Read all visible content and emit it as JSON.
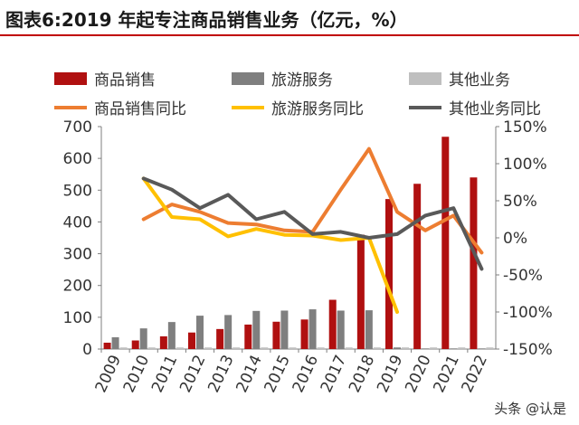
{
  "title": "图表6:2019 年起专注商品销售业务（亿元，%）",
  "watermark": "头条 @认是",
  "chart_data": {
    "type": "bar",
    "categories": [
      "2009",
      "2010",
      "2011",
      "2012",
      "2013",
      "2014",
      "2015",
      "2016",
      "2017",
      "2018",
      "2019",
      "2020",
      "2021",
      "2022"
    ],
    "series": [
      {
        "name": "商品销售",
        "kind": "bar",
        "axis": "left",
        "color": "#b01010",
        "values": [
          20,
          27,
          40,
          52,
          63,
          77,
          86,
          93,
          155,
          360,
          472,
          520,
          668,
          540
        ]
      },
      {
        "name": "旅游服务",
        "kind": "bar",
        "axis": "left",
        "color": "#7f7f7f",
        "values": [
          37,
          65,
          85,
          105,
          107,
          120,
          121,
          125,
          121,
          122,
          5,
          2,
          2,
          2
        ]
      },
      {
        "name": "其他业务",
        "kind": "bar",
        "axis": "left",
        "color": "#bfbfbf",
        "values": [
          5,
          5,
          5,
          5,
          5,
          5,
          5,
          5,
          5,
          5,
          5,
          5,
          5,
          5
        ]
      },
      {
        "name": "商品销售同比",
        "kind": "line",
        "axis": "right",
        "color": "#ed7d31",
        "values": [
          null,
          25,
          45,
          35,
          20,
          18,
          10,
          8,
          65,
          120,
          35,
          10,
          30,
          -20
        ]
      },
      {
        "name": "旅游服务同比",
        "kind": "line",
        "axis": "right",
        "color": "#ffc000",
        "values": [
          null,
          80,
          28,
          25,
          2,
          12,
          4,
          3,
          -3,
          0,
          -100,
          null,
          null,
          null
        ]
      },
      {
        "name": "其他业务同比",
        "kind": "line",
        "axis": "right",
        "color": "#595959",
        "values": [
          null,
          80,
          65,
          40,
          58,
          25,
          35,
          5,
          8,
          0,
          5,
          30,
          40,
          -42
        ]
      }
    ],
    "ylim": [
      0,
      700
    ],
    "y2lim": [
      -150,
      150
    ],
    "yticks": [
      "0",
      "100",
      "200",
      "300",
      "400",
      "500",
      "600",
      "700"
    ],
    "y2ticks": [
      "-150%",
      "-100%",
      "-50%",
      "0%",
      "50%",
      "100%",
      "150%"
    ],
    "grid": false,
    "legend_position": "top"
  }
}
